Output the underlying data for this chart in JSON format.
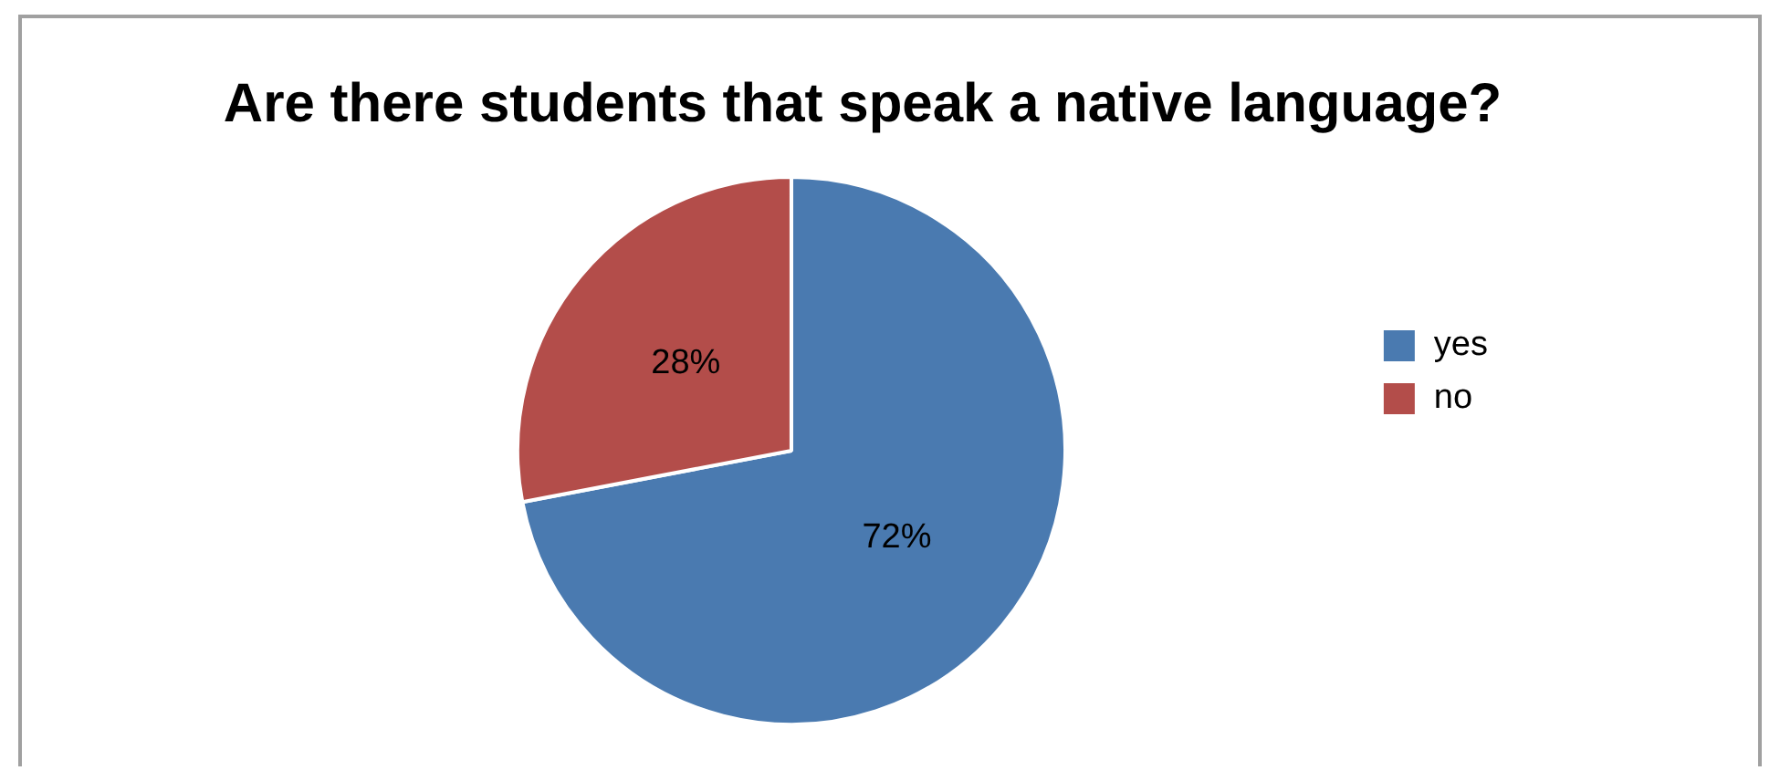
{
  "chart_data": {
    "type": "pie",
    "title": "Are there students that speak a native language?",
    "categories": [
      "yes",
      "no"
    ],
    "values": [
      72,
      28
    ],
    "colors": [
      "#4a7ab0",
      "#b34d4a"
    ],
    "value_labels": [
      "72%",
      "28%"
    ],
    "legend": "right"
  }
}
